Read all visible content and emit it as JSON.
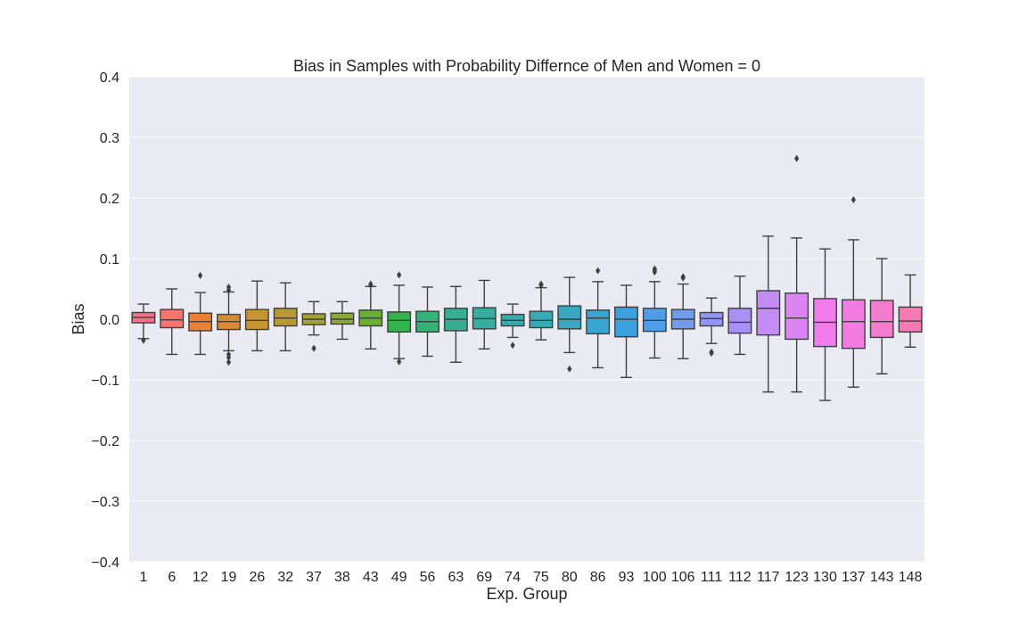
{
  "chart_data": {
    "type": "box",
    "title": "Bias in Samples with Probability Differnce of Men and Women = 0",
    "xlabel": "Exp. Group",
    "ylabel": "Bias",
    "ylim": [
      -0.4,
      0.4
    ],
    "yticks": [
      -0.4,
      -0.3,
      -0.2,
      -0.1,
      0.0,
      0.1,
      0.2,
      0.3,
      0.4
    ],
    "ytick_labels": [
      "−0.4",
      "−0.3",
      "−0.2",
      "−0.1",
      "0.0",
      "0.1",
      "0.2",
      "0.3",
      "0.4"
    ],
    "grid": true,
    "background": "#eaeaf2",
    "categories": [
      "1",
      "6",
      "12",
      "19",
      "26",
      "32",
      "37",
      "38",
      "43",
      "49",
      "56",
      "63",
      "69",
      "74",
      "75",
      "80",
      "86",
      "93",
      "100",
      "106",
      "111",
      "112",
      "117",
      "123",
      "130",
      "137",
      "143",
      "148"
    ],
    "boxes": [
      {
        "whislo": -0.032,
        "q1": -0.006,
        "med": 0.003,
        "q3": 0.011,
        "whishi": 0.025,
        "fliers": [
          -0.035
        ],
        "color": "#f77189"
      },
      {
        "whislo": -0.058,
        "q1": -0.014,
        "med": -0.001,
        "q3": 0.016,
        "whishi": 0.05,
        "fliers": [],
        "color": "#f7756e"
      },
      {
        "whislo": -0.058,
        "q1": -0.019,
        "med": -0.004,
        "q3": 0.01,
        "whishi": 0.044,
        "fliers": [
          0.072
        ],
        "color": "#e98132"
      },
      {
        "whislo": -0.052,
        "q1": -0.017,
        "med": -0.004,
        "q3": 0.008,
        "whishi": 0.045,
        "fliers": [
          0.048,
          0.053,
          -0.058,
          -0.063,
          -0.071
        ],
        "color": "#d98b32"
      },
      {
        "whislo": -0.052,
        "q1": -0.017,
        "med": -0.002,
        "q3": 0.016,
        "whishi": 0.063,
        "fliers": [],
        "color": "#c69532"
      },
      {
        "whislo": -0.052,
        "q1": -0.011,
        "med": 0.002,
        "q3": 0.018,
        "whishi": 0.06,
        "fliers": [],
        "color": "#b59b32"
      },
      {
        "whislo": -0.026,
        "q1": -0.009,
        "med": 0.0,
        "q3": 0.009,
        "whishi": 0.029,
        "fliers": [
          -0.048
        ],
        "color": "#a1a232"
      },
      {
        "whislo": -0.033,
        "q1": -0.008,
        "med": 0.0,
        "q3": 0.01,
        "whishi": 0.029,
        "fliers": [],
        "color": "#8aa932"
      },
      {
        "whislo": -0.049,
        "q1": -0.011,
        "med": 0.002,
        "q3": 0.015,
        "whishi": 0.054,
        "fliers": [
          0.056,
          0.058
        ],
        "color": "#6aaf32"
      },
      {
        "whislo": -0.065,
        "q1": -0.021,
        "med": -0.002,
        "q3": 0.012,
        "whishi": 0.056,
        "fliers": [
          0.073,
          -0.07
        ],
        "color": "#32b44a"
      },
      {
        "whislo": -0.061,
        "q1": -0.021,
        "med": -0.004,
        "q3": 0.013,
        "whishi": 0.053,
        "fliers": [],
        "color": "#33b27a"
      },
      {
        "whislo": -0.071,
        "q1": -0.019,
        "med": 0.0,
        "q3": 0.018,
        "whishi": 0.054,
        "fliers": [],
        "color": "#34af93"
      },
      {
        "whislo": -0.049,
        "q1": -0.016,
        "med": 0.001,
        "q3": 0.019,
        "whishi": 0.064,
        "fliers": [],
        "color": "#35aea0"
      },
      {
        "whislo": -0.03,
        "q1": -0.011,
        "med": -0.002,
        "q3": 0.008,
        "whishi": 0.025,
        "fliers": [
          -0.043
        ],
        "color": "#36acab"
      },
      {
        "whislo": -0.034,
        "q1": -0.014,
        "med": -0.002,
        "q3": 0.013,
        "whishi": 0.052,
        "fliers": [
          0.056,
          0.058
        ],
        "color": "#37abb5"
      },
      {
        "whislo": -0.055,
        "q1": -0.016,
        "med": 0.0,
        "q3": 0.022,
        "whishi": 0.069,
        "fliers": [
          -0.082
        ],
        "color": "#38a9c1"
      },
      {
        "whislo": -0.08,
        "q1": -0.024,
        "med": 0.002,
        "q3": 0.015,
        "whishi": 0.062,
        "fliers": [
          0.08
        ],
        "color": "#3aa6d0"
      },
      {
        "whislo": -0.096,
        "q1": -0.029,
        "med": 0.0,
        "q3": 0.02,
        "whishi": 0.056,
        "fliers": [],
        "color": "#3ba2df"
      },
      {
        "whislo": -0.064,
        "q1": -0.02,
        "med": -0.002,
        "q3": 0.018,
        "whishi": 0.062,
        "fliers": [
          0.078,
          0.081,
          0.083
        ],
        "color": "#4e9fe8"
      },
      {
        "whislo": -0.065,
        "q1": -0.016,
        "med": 0.0,
        "q3": 0.016,
        "whishi": 0.058,
        "fliers": [
          0.068,
          0.07
        ],
        "color": "#729cee"
      },
      {
        "whislo": -0.04,
        "q1": -0.011,
        "med": 0.001,
        "q3": 0.011,
        "whishi": 0.035,
        "fliers": [
          -0.054,
          -0.056
        ],
        "color": "#9196f4"
      },
      {
        "whislo": -0.058,
        "q1": -0.023,
        "med": -0.005,
        "q3": 0.018,
        "whishi": 0.071,
        "fliers": [],
        "color": "#a990f4"
      },
      {
        "whislo": -0.12,
        "q1": -0.026,
        "med": 0.018,
        "q3": 0.047,
        "whishi": 0.137,
        "fliers": [],
        "color": "#c38bf4"
      },
      {
        "whislo": -0.12,
        "q1": -0.033,
        "med": 0.002,
        "q3": 0.043,
        "whishi": 0.134,
        "fliers": [
          0.265
        ],
        "color": "#db84f2"
      },
      {
        "whislo": -0.134,
        "q1": -0.045,
        "med": -0.005,
        "q3": 0.034,
        "whishi": 0.116,
        "fliers": [],
        "color": "#f07ced"
      },
      {
        "whislo": -0.112,
        "q1": -0.048,
        "med": -0.004,
        "q3": 0.032,
        "whishi": 0.131,
        "fliers": [
          0.197
        ],
        "color": "#f27de0"
      },
      {
        "whislo": -0.09,
        "q1": -0.03,
        "med": -0.004,
        "q3": 0.031,
        "whishi": 0.1,
        "fliers": [],
        "color": "#f47ccf"
      },
      {
        "whislo": -0.046,
        "q1": -0.021,
        "med": -0.003,
        "q3": 0.02,
        "whishi": 0.073,
        "fliers": [],
        "color": "#f57ab6"
      }
    ]
  }
}
